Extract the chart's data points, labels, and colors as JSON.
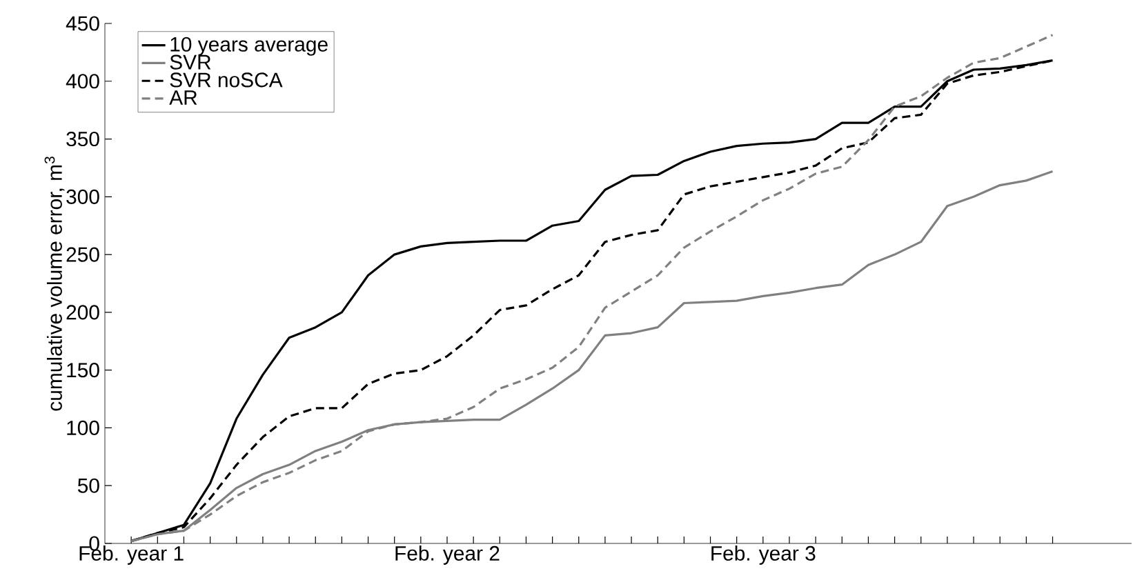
{
  "chart_data": {
    "type": "line",
    "ylabel": "cumulative volume error, m$^{3}$",
    "categories": [
      "Feb. year 1",
      null,
      null,
      null,
      null,
      null,
      null,
      null,
      null,
      null,
      null,
      null,
      "Feb. year 2",
      null,
      null,
      null,
      null,
      null,
      null,
      null,
      null,
      null,
      null,
      null,
      "Feb. year 3",
      null,
      null,
      null,
      null,
      null,
      null,
      null,
      null,
      null,
      null,
      null
    ],
    "series": [
      {
        "name": "10 years average",
        "color": "#000000",
        "line_style": "solid",
        "values": [
          2,
          9,
          16,
          52,
          108,
          146,
          178,
          187,
          200,
          232,
          250,
          257,
          260,
          261,
          262,
          262,
          275,
          279,
          306,
          318,
          319,
          331,
          339,
          344,
          346,
          347,
          350,
          364,
          364,
          378,
          378,
          400,
          410,
          411,
          414,
          418
        ]
      },
      {
        "name": "SVR",
        "color": "#808080",
        "line_style": "solid",
        "values": [
          2,
          8,
          11,
          29,
          48,
          60,
          68,
          80,
          88,
          98,
          103,
          105,
          106,
          107,
          107,
          120,
          134,
          150,
          180,
          182,
          187,
          208,
          209,
          210,
          214,
          217,
          221,
          224,
          241,
          250,
          261,
          292,
          300,
          310,
          314,
          322
        ]
      },
      {
        "name": "SVR noSCA",
        "color": "#000000",
        "line_style": "dashed",
        "values": [
          2,
          9,
          14,
          39,
          68,
          92,
          110,
          117,
          117,
          138,
          147,
          150,
          162,
          180,
          202,
          206,
          220,
          232,
          261,
          267,
          271,
          302,
          309,
          313,
          317,
          321,
          327,
          342,
          347,
          368,
          371,
          398,
          405,
          408,
          413,
          418
        ]
      },
      {
        "name": "AR",
        "color": "#808080",
        "line_style": "dashed",
        "values": [
          2,
          8,
          11,
          25,
          41,
          53,
          61,
          72,
          80,
          97,
          103,
          105,
          108,
          118,
          134,
          142,
          152,
          170,
          204,
          218,
          232,
          256,
          270,
          283,
          297,
          307,
          320,
          326,
          349,
          378,
          387,
          403,
          416,
          420,
          430,
          440
        ]
      }
    ],
    "ylim": [
      0,
      450
    ],
    "yticks": [
      0,
      50,
      100,
      150,
      200,
      250,
      300,
      350,
      400,
      450
    ],
    "legend": "top left"
  }
}
